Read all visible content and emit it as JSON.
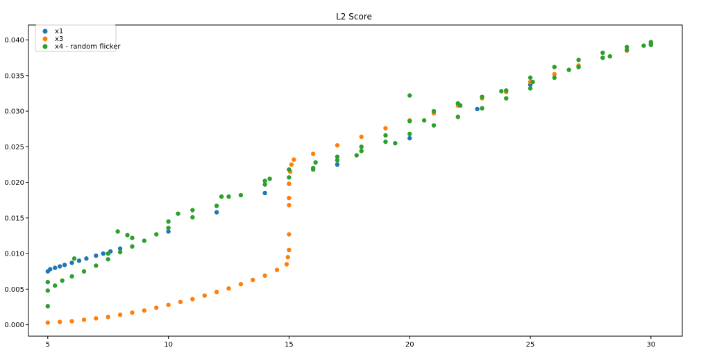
{
  "chart_data": {
    "type": "scatter",
    "title": "L2 Score",
    "xlabel": "",
    "ylabel": "",
    "xlim": [
      4.2,
      31.3
    ],
    "ylim": [
      -0.0016,
      0.0421
    ],
    "xticks": [
      5,
      10,
      15,
      20,
      25,
      30
    ],
    "yticks": [
      0.0,
      0.005,
      0.01,
      0.015,
      0.02,
      0.025,
      0.03,
      0.035,
      0.04
    ],
    "xtick_labels": [
      "5",
      "10",
      "15",
      "20",
      "25",
      "30"
    ],
    "ytick_labels": [
      "0.000",
      "0.005",
      "0.010",
      "0.015",
      "0.020",
      "0.025",
      "0.030",
      "0.035",
      "0.040"
    ],
    "grid": false,
    "legend_position": "top-left",
    "legend": [
      "x1",
      "x3",
      "x4 - random flicker"
    ],
    "series": [
      {
        "name": "x1",
        "color": "#1f77b4",
        "points": [
          [
            5.0,
            0.0075
          ],
          [
            5.1,
            0.0078
          ],
          [
            5.3,
            0.008
          ],
          [
            5.5,
            0.0082
          ],
          [
            5.7,
            0.0084
          ],
          [
            6.0,
            0.0087
          ],
          [
            6.3,
            0.009
          ],
          [
            6.6,
            0.0093
          ],
          [
            7.0,
            0.0097
          ],
          [
            7.3,
            0.01
          ],
          [
            7.6,
            0.0103
          ],
          [
            8.0,
            0.0107
          ],
          [
            10,
            0.0131
          ],
          [
            12,
            0.0158
          ],
          [
            14,
            0.0185
          ],
          [
            15,
            0.0198
          ],
          [
            17,
            0.0225
          ],
          [
            20,
            0.0262
          ],
          [
            22.8,
            0.0303
          ],
          [
            25,
            0.0337
          ],
          [
            27,
            0.0362
          ],
          [
            30,
            0.0395
          ]
        ]
      },
      {
        "name": "x3",
        "color": "#ff7f0e",
        "points": [
          [
            5.0,
            0.0003
          ],
          [
            5.5,
            0.0004
          ],
          [
            6.0,
            0.0005
          ],
          [
            6.5,
            0.0007
          ],
          [
            7.0,
            0.0009
          ],
          [
            7.5,
            0.0011
          ],
          [
            8.0,
            0.0014
          ],
          [
            8.5,
            0.0017
          ],
          [
            9.0,
            0.002
          ],
          [
            9.5,
            0.0024
          ],
          [
            10.0,
            0.0028
          ],
          [
            10.5,
            0.0032
          ],
          [
            11.0,
            0.0036
          ],
          [
            11.5,
            0.0041
          ],
          [
            12.0,
            0.0046
          ],
          [
            12.5,
            0.0051
          ],
          [
            13.0,
            0.0057
          ],
          [
            13.5,
            0.0063
          ],
          [
            14.0,
            0.0069
          ],
          [
            14.5,
            0.0077
          ],
          [
            14.9,
            0.0085
          ],
          [
            14.95,
            0.0095
          ],
          [
            15.0,
            0.0105
          ],
          [
            15.0,
            0.0127
          ],
          [
            15.0,
            0.0168
          ],
          [
            15.0,
            0.0178
          ],
          [
            15.0,
            0.0198
          ],
          [
            15.05,
            0.0215
          ],
          [
            15.1,
            0.0225
          ],
          [
            15.2,
            0.0232
          ],
          [
            16.0,
            0.024
          ],
          [
            17.0,
            0.0252
          ],
          [
            18.0,
            0.0264
          ],
          [
            19.0,
            0.0276
          ],
          [
            20.0,
            0.0287
          ],
          [
            21.0,
            0.0297
          ],
          [
            22.0,
            0.0308
          ],
          [
            23.0,
            0.0318
          ],
          [
            24.0,
            0.0327
          ],
          [
            25.0,
            0.0341
          ],
          [
            26.0,
            0.0352
          ],
          [
            27.0,
            0.0364
          ],
          [
            28.0,
            0.0375
          ],
          [
            29.0,
            0.0385
          ],
          [
            30.0,
            0.0395
          ]
        ]
      },
      {
        "name": "x4 - random flicker",
        "color": "#2ca02c",
        "points": [
          [
            5.0,
            0.0026
          ],
          [
            5.0,
            0.0048
          ],
          [
            5.0,
            0.006
          ],
          [
            5.3,
            0.0055
          ],
          [
            5.6,
            0.0062
          ],
          [
            6.0,
            0.0068
          ],
          [
            6.5,
            0.0075
          ],
          [
            7.0,
            0.0083
          ],
          [
            7.5,
            0.0092
          ],
          [
            8.0,
            0.0102
          ],
          [
            8.5,
            0.011
          ],
          [
            9.0,
            0.0118
          ],
          [
            9.5,
            0.0127
          ],
          [
            10.0,
            0.0136
          ],
          [
            11.0,
            0.0151
          ],
          [
            12.0,
            0.0167
          ],
          [
            13.0,
            0.0182
          ],
          [
            14.0,
            0.0197
          ],
          [
            15.0,
            0.0207
          ],
          [
            16.0,
            0.0218
          ],
          [
            17.0,
            0.0231
          ],
          [
            18.0,
            0.0244
          ],
          [
            19.0,
            0.0257
          ],
          [
            20.0,
            0.0268
          ],
          [
            21.0,
            0.028
          ],
          [
            22.0,
            0.0292
          ],
          [
            23.0,
            0.0304
          ],
          [
            24.0,
            0.0318
          ],
          [
            25.0,
            0.0332
          ],
          [
            26.0,
            0.0347
          ],
          [
            27.0,
            0.0362
          ],
          [
            28.0,
            0.0375
          ],
          [
            29.0,
            0.0386
          ],
          [
            30.0,
            0.0393
          ],
          [
            7.5,
            0.01
          ],
          [
            8.5,
            0.0122
          ],
          [
            10.0,
            0.0145
          ],
          [
            11.0,
            0.0161
          ],
          [
            12.5,
            0.018
          ],
          [
            14.0,
            0.0202
          ],
          [
            15.0,
            0.0218
          ],
          [
            16.0,
            0.022
          ],
          [
            17.0,
            0.0236
          ],
          [
            18.0,
            0.025
          ],
          [
            19.0,
            0.0266
          ],
          [
            20.0,
            0.0286
          ],
          [
            21.0,
            0.03
          ],
          [
            22.0,
            0.0311
          ],
          [
            23.0,
            0.032
          ],
          [
            24.0,
            0.0329
          ],
          [
            25.0,
            0.0347
          ],
          [
            26.0,
            0.0362
          ],
          [
            27.0,
            0.0372
          ],
          [
            28.0,
            0.0382
          ],
          [
            29.0,
            0.039
          ],
          [
            30.0,
            0.0397
          ],
          [
            8.3,
            0.0126
          ],
          [
            10.4,
            0.0156
          ],
          [
            12.2,
            0.018
          ],
          [
            14.2,
            0.0205
          ],
          [
            16.1,
            0.0228
          ],
          [
            17.8,
            0.0238
          ],
          [
            19.4,
            0.0255
          ],
          [
            20.6,
            0.0287
          ],
          [
            22.1,
            0.0308
          ],
          [
            23.8,
            0.0328
          ],
          [
            25.1,
            0.0341
          ],
          [
            26.6,
            0.0358
          ],
          [
            28.3,
            0.0377
          ],
          [
            29.7,
            0.0392
          ],
          [
            20.0,
            0.0322
          ],
          [
            7.9,
            0.0131
          ],
          [
            6.1,
            0.0093
          ]
        ]
      }
    ]
  }
}
